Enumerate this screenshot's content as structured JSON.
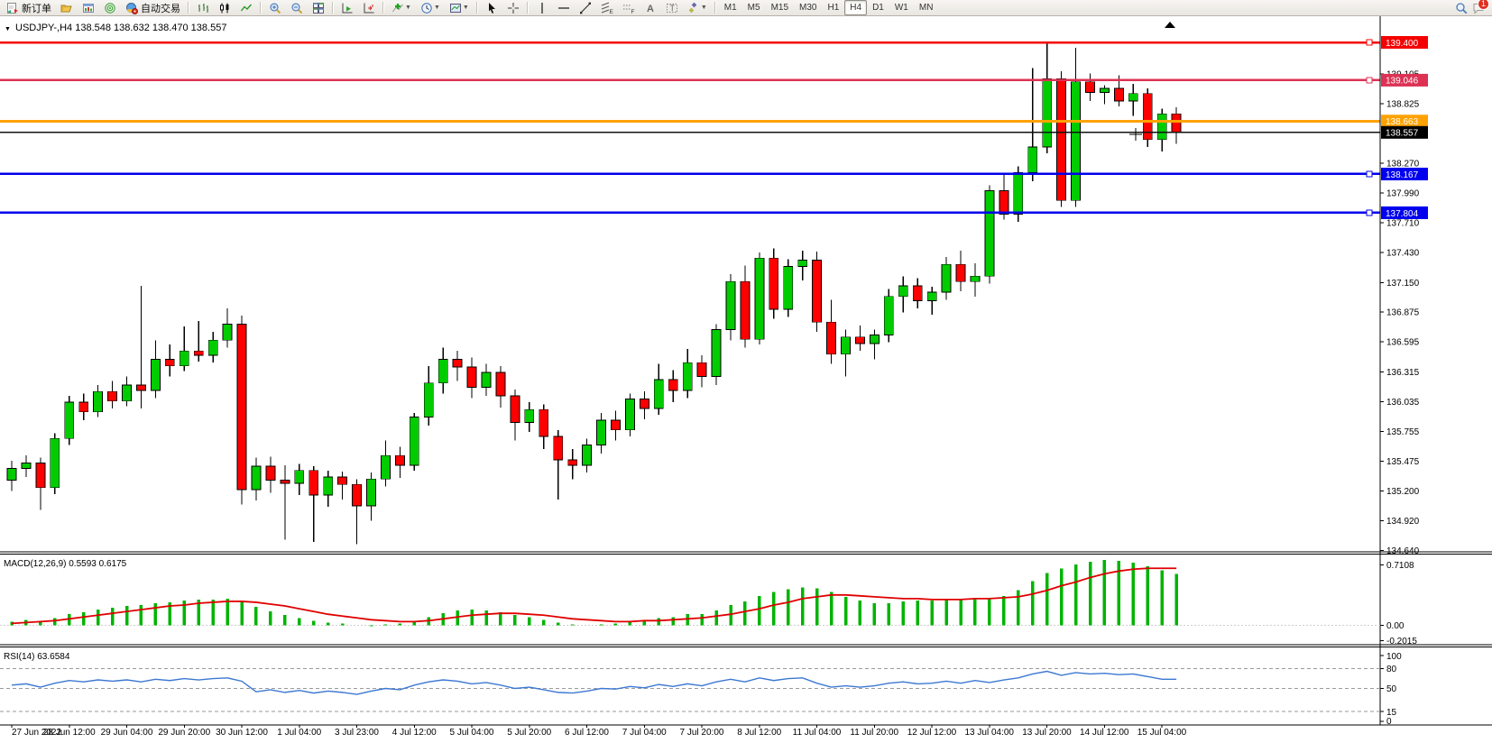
{
  "toolbar": {
    "new_order_label": "新订单",
    "autotrading_label": "自动交易",
    "timeframes": [
      "M1",
      "M5",
      "M15",
      "M30",
      "H1",
      "H4",
      "D1",
      "W1",
      "MN"
    ],
    "active_timeframe": "H4",
    "notification_count": "1"
  },
  "header": {
    "symbol_marker": "▼",
    "symbol": "USDJPY-,H4",
    "ohlc_text": "138.548 138.632 138.470 138.557"
  },
  "colors": {
    "bull": "#00cc00",
    "bear": "#ff0000",
    "wick": "#000000",
    "line_red": "#f40000",
    "line_crimson": "#dc3254",
    "line_orange": "#ffa200",
    "line_black": "#111111",
    "line_blue": "#0000ee",
    "macd_hist": "#00b400",
    "macd_signal": "#e00000",
    "rsi_line": "#3c78d2"
  },
  "price_axis": {
    "ticks": [
      "139.105",
      "138.825",
      "138.270",
      "137.990",
      "137.710",
      "137.430",
      "137.150",
      "136.875",
      "136.595",
      "136.315",
      "136.035",
      "135.755",
      "135.475",
      "135.200",
      "134.920",
      "134.640"
    ],
    "tick_values": [
      139.105,
      138.825,
      138.27,
      137.99,
      137.71,
      137.43,
      137.15,
      136.875,
      136.595,
      136.315,
      136.035,
      135.755,
      135.475,
      135.2,
      134.92,
      134.64
    ]
  },
  "chart_data": [
    {
      "type": "candlestick",
      "title": "USDJPY-,H4",
      "timeframe": "H4",
      "last_bar": {
        "open": "138.548",
        "high": "138.632",
        "low": "138.470",
        "close": "138.557"
      },
      "ylim": [
        134.64,
        139.67
      ],
      "x_labels": [
        "27 Jun 2022",
        "28 Jun 12:00",
        "29 Jun 04:00",
        "29 Jun 20:00",
        "30 Jun 12:00",
        "1 Jul 04:00",
        "3 Jul 23:00",
        "4 Jul 12:00",
        "5 Jul 04:00",
        "5 Jul 20:00",
        "6 Jul 12:00",
        "7 Jul 04:00",
        "7 Jul 20:00",
        "8 Jul 12:00",
        "11 Jul 04:00",
        "11 Jul 20:00",
        "12 Jul 12:00",
        "13 Jul 04:00",
        "13 Jul 20:00",
        "14 Jul 12:00",
        "15 Jul 04:00"
      ],
      "horizontal_lines": [
        {
          "price": 139.4,
          "label": "139.400",
          "color": "#f40000",
          "width": 2.5,
          "endsquare": true
        },
        {
          "price": 139.046,
          "label": "139.046",
          "color": "#dc3254",
          "width": 2.5,
          "endsquare": true
        },
        {
          "price": 138.663,
          "label": "138.663",
          "color": "#ffa200",
          "width": 3,
          "endsquare": false
        },
        {
          "price": 138.557,
          "label": "138.557",
          "color": "#111111",
          "width": 1.2,
          "endsquare": false
        },
        {
          "price": 138.167,
          "label": "138.167",
          "color": "#0000ee",
          "width": 2.5,
          "endsquare": true
        },
        {
          "price": 137.804,
          "label": "137.804",
          "color": "#0000ee",
          "width": 2.5,
          "endsquare": true
        }
      ],
      "candles": [
        [
          135.3,
          135.48,
          135.2,
          135.41
        ],
        [
          135.41,
          135.53,
          135.33,
          135.46
        ],
        [
          135.46,
          135.51,
          135.02,
          135.23
        ],
        [
          135.23,
          135.74,
          135.17,
          135.69
        ],
        [
          135.69,
          136.09,
          135.63,
          136.03
        ],
        [
          136.03,
          136.11,
          135.86,
          135.94
        ],
        [
          135.94,
          136.19,
          135.89,
          136.13
        ],
        [
          136.13,
          136.23,
          135.97,
          136.04
        ],
        [
          136.04,
          136.27,
          135.99,
          136.19
        ],
        [
          136.19,
          137.12,
          135.97,
          136.14
        ],
        [
          136.14,
          136.61,
          136.07,
          136.43
        ],
        [
          136.43,
          136.57,
          136.27,
          136.37
        ],
        [
          136.37,
          136.74,
          136.32,
          136.51
        ],
        [
          136.51,
          136.79,
          136.41,
          136.47
        ],
        [
          136.47,
          136.69,
          136.4,
          136.61
        ],
        [
          136.61,
          136.91,
          136.54,
          136.76
        ],
        [
          136.76,
          136.84,
          135.07,
          135.21
        ],
        [
          135.21,
          135.51,
          135.11,
          135.43
        ],
        [
          135.43,
          135.52,
          135.18,
          135.3
        ],
        [
          135.3,
          135.44,
          134.74,
          135.27
        ],
        [
          135.27,
          135.45,
          135.16,
          135.39
        ],
        [
          135.39,
          135.43,
          134.72,
          135.16
        ],
        [
          135.16,
          135.39,
          135.05,
          135.33
        ],
        [
          135.33,
          135.38,
          135.12,
          135.26
        ],
        [
          135.26,
          135.31,
          134.7,
          135.06
        ],
        [
          135.06,
          135.37,
          134.92,
          135.31
        ],
        [
          135.31,
          135.67,
          135.24,
          135.53
        ],
        [
          135.53,
          135.61,
          135.32,
          135.44
        ],
        [
          135.44,
          135.93,
          135.39,
          135.89
        ],
        [
          135.89,
          136.37,
          135.81,
          136.21
        ],
        [
          136.21,
          136.54,
          136.11,
          136.43
        ],
        [
          136.43,
          136.51,
          136.23,
          136.36
        ],
        [
          136.36,
          136.45,
          136.07,
          136.17
        ],
        [
          136.17,
          136.39,
          136.09,
          136.31
        ],
        [
          136.31,
          136.37,
          135.98,
          136.09
        ],
        [
          136.09,
          136.15,
          135.67,
          135.84
        ],
        [
          135.84,
          136.03,
          135.75,
          135.96
        ],
        [
          135.96,
          136.01,
          135.59,
          135.71
        ],
        [
          135.71,
          135.77,
          135.12,
          135.49
        ],
        [
          135.49,
          135.59,
          135.31,
          135.44
        ],
        [
          135.44,
          135.69,
          135.37,
          135.63
        ],
        [
          135.63,
          135.93,
          135.55,
          135.86
        ],
        [
          135.86,
          135.95,
          135.67,
          135.77
        ],
        [
          135.77,
          136.11,
          135.71,
          136.06
        ],
        [
          136.06,
          136.13,
          135.87,
          135.97
        ],
        [
          135.97,
          136.39,
          135.91,
          136.24
        ],
        [
          136.24,
          136.33,
          136.03,
          136.14
        ],
        [
          136.14,
          136.53,
          136.07,
          136.4
        ],
        [
          136.4,
          136.47,
          136.17,
          136.27
        ],
        [
          136.27,
          136.76,
          136.19,
          136.71
        ],
        [
          136.71,
          137.23,
          136.61,
          137.16
        ],
        [
          137.16,
          137.31,
          136.54,
          136.62
        ],
        [
          136.62,
          137.43,
          136.57,
          137.38
        ],
        [
          137.38,
          137.47,
          136.81,
          136.9
        ],
        [
          136.9,
          137.37,
          136.83,
          137.3
        ],
        [
          137.3,
          137.45,
          137.17,
          137.36
        ],
        [
          137.36,
          137.44,
          136.69,
          136.78
        ],
        [
          136.78,
          136.99,
          136.39,
          136.48
        ],
        [
          136.48,
          136.71,
          136.27,
          136.64
        ],
        [
          136.64,
          136.75,
          136.51,
          136.58
        ],
        [
          136.58,
          136.71,
          136.43,
          136.66
        ],
        [
          136.66,
          137.09,
          136.59,
          137.02
        ],
        [
          137.02,
          137.21,
          136.87,
          137.12
        ],
        [
          137.12,
          137.19,
          136.91,
          136.98
        ],
        [
          136.98,
          137.11,
          136.85,
          137.06
        ],
        [
          137.06,
          137.39,
          136.99,
          137.32
        ],
        [
          137.32,
          137.45,
          137.07,
          137.16
        ],
        [
          137.16,
          137.33,
          137.02,
          137.21
        ],
        [
          137.21,
          138.06,
          137.14,
          138.01
        ],
        [
          138.01,
          138.16,
          137.74,
          137.79
        ],
        [
          137.79,
          138.24,
          137.72,
          138.18
        ],
        [
          138.18,
          139.16,
          138.1,
          138.42
        ],
        [
          138.42,
          139.4,
          138.36,
          139.06
        ],
        [
          139.06,
          139.13,
          137.86,
          137.92
        ],
        [
          137.92,
          139.35,
          137.86,
          139.03
        ],
        [
          139.03,
          139.11,
          138.85,
          138.93
        ],
        [
          138.93,
          139.0,
          138.82,
          138.97
        ],
        [
          138.97,
          139.09,
          138.8,
          138.85
        ],
        [
          138.85,
          139.01,
          138.71,
          138.92
        ],
        [
          138.92,
          138.97,
          138.42,
          138.49
        ],
        [
          138.49,
          138.78,
          138.38,
          138.73
        ],
        [
          138.73,
          138.79,
          138.45,
          138.557
        ]
      ]
    },
    {
      "type": "bar",
      "name": "MACD(12,26,9)",
      "label_text": "MACD(12,26,9) 0.5593 0.6175",
      "values_current": {
        "macd": "0.5593",
        "signal": "0.6175"
      },
      "axis_labels": [
        "0.7108",
        "0.00",
        "-0.2015"
      ],
      "axis_values": [
        0.7108,
        0.0,
        -0.2015
      ],
      "values": [
        0.04,
        0.06,
        0.05,
        0.08,
        0.12,
        0.14,
        0.17,
        0.19,
        0.21,
        0.22,
        0.24,
        0.25,
        0.27,
        0.28,
        0.28,
        0.29,
        0.27,
        0.2,
        0.15,
        0.11,
        0.08,
        0.05,
        0.03,
        0.02,
        0.0,
        -0.01,
        0.01,
        0.02,
        0.05,
        0.09,
        0.13,
        0.16,
        0.17,
        0.16,
        0.14,
        0.11,
        0.09,
        0.06,
        0.03,
        0.01,
        0.0,
        0.01,
        0.02,
        0.04,
        0.05,
        0.08,
        0.09,
        0.12,
        0.12,
        0.16,
        0.22,
        0.26,
        0.32,
        0.36,
        0.39,
        0.41,
        0.4,
        0.36,
        0.31,
        0.27,
        0.24,
        0.24,
        0.26,
        0.27,
        0.27,
        0.28,
        0.28,
        0.3,
        0.29,
        0.32,
        0.38,
        0.48,
        0.57,
        0.62,
        0.66,
        0.69,
        0.71,
        0.7,
        0.68,
        0.64,
        0.6,
        0.56
      ],
      "signal": [
        0.02,
        0.03,
        0.04,
        0.05,
        0.07,
        0.09,
        0.11,
        0.13,
        0.15,
        0.17,
        0.19,
        0.21,
        0.22,
        0.24,
        0.25,
        0.26,
        0.26,
        0.25,
        0.23,
        0.21,
        0.18,
        0.15,
        0.12,
        0.1,
        0.08,
        0.06,
        0.05,
        0.04,
        0.04,
        0.05,
        0.07,
        0.09,
        0.11,
        0.12,
        0.13,
        0.13,
        0.12,
        0.11,
        0.09,
        0.07,
        0.06,
        0.05,
        0.04,
        0.04,
        0.05,
        0.05,
        0.06,
        0.07,
        0.08,
        0.1,
        0.12,
        0.15,
        0.18,
        0.22,
        0.25,
        0.29,
        0.31,
        0.33,
        0.33,
        0.32,
        0.31,
        0.3,
        0.29,
        0.29,
        0.28,
        0.28,
        0.28,
        0.29,
        0.29,
        0.3,
        0.31,
        0.34,
        0.38,
        0.43,
        0.47,
        0.52,
        0.56,
        0.59,
        0.61,
        0.62,
        0.62,
        0.62
      ]
    },
    {
      "type": "line",
      "name": "RSI(14)",
      "label_text": "RSI(14) 63.6584",
      "value_current": "63.6584",
      "axis_labels": [
        "100",
        "80",
        "50",
        "15",
        "0"
      ],
      "levels": [
        80,
        50,
        15
      ],
      "ylim": [
        0,
        100
      ],
      "values": [
        55,
        57,
        52,
        58,
        62,
        60,
        63,
        61,
        63,
        60,
        64,
        62,
        65,
        63,
        65,
        66,
        61,
        45,
        48,
        44,
        47,
        43,
        46,
        44,
        41,
        46,
        50,
        48,
        55,
        60,
        63,
        61,
        57,
        59,
        55,
        50,
        52,
        48,
        44,
        43,
        46,
        50,
        49,
        53,
        51,
        56,
        53,
        57,
        54,
        60,
        64,
        60,
        66,
        62,
        65,
        66,
        58,
        52,
        54,
        52,
        54,
        58,
        60,
        57,
        58,
        61,
        58,
        62,
        59,
        63,
        66,
        72,
        76,
        70,
        74,
        72,
        73,
        71,
        72,
        68,
        64,
        64
      ]
    }
  ]
}
